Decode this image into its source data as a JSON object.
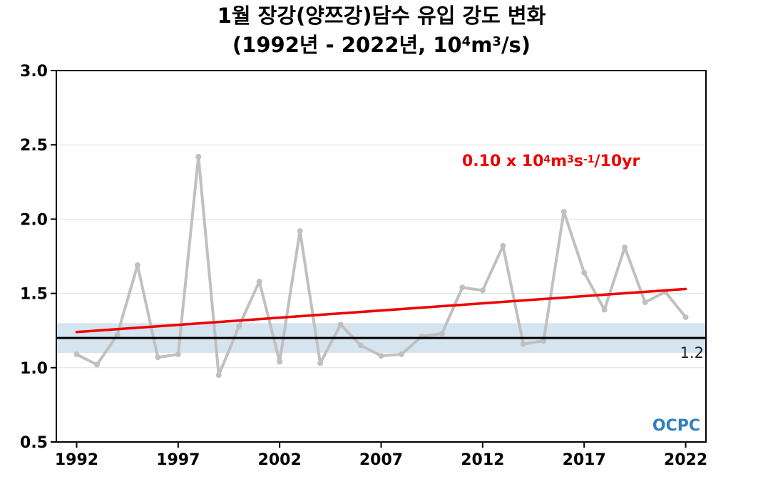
{
  "title": {
    "line1": "1월 장강(양쯔강)담수 유입 강도 변화",
    "line2_prefix": "(1992년 - 2022년, 10",
    "line2_sup1": "4",
    "line2_mid": "m",
    "line2_sup2": "3",
    "line2_suffix": "/s)"
  },
  "trend_label": {
    "prefix": "0.10 x 10",
    "sup1": "4",
    "m": "m",
    "sup2": "3",
    "s": "s",
    "sup3": "-1",
    "suffix": "/10yr",
    "color": "#ee0000"
  },
  "logo": {
    "text": "OCPC",
    "color": "#2f7fc1"
  },
  "chart_data": {
    "type": "line",
    "x": [
      1992,
      1993,
      1994,
      1995,
      1996,
      1997,
      1998,
      1999,
      2000,
      2001,
      2002,
      2003,
      2004,
      2005,
      2006,
      2007,
      2008,
      2009,
      2010,
      2011,
      2012,
      2013,
      2014,
      2015,
      2016,
      2017,
      2018,
      2019,
      2020,
      2021,
      2022
    ],
    "series": [
      {
        "color": "#c0c0c0",
        "values": [
          1.09,
          1.02,
          1.22,
          1.69,
          1.07,
          1.09,
          2.42,
          0.95,
          1.28,
          1.58,
          1.04,
          1.92,
          1.03,
          1.29,
          1.15,
          1.08,
          1.09,
          1.21,
          1.23,
          1.54,
          1.52,
          1.82,
          1.16,
          1.18,
          2.05,
          1.64,
          1.39,
          1.81,
          1.44,
          1.51,
          1.34
        ]
      }
    ],
    "trend": {
      "x": [
        1992,
        2022
      ],
      "y": [
        1.24,
        1.53
      ],
      "color": "#ee0000"
    },
    "mean": {
      "value": 1.2,
      "label": "1.2",
      "band": [
        1.1,
        1.3
      ],
      "band_color": "#d6e4f0"
    },
    "xticks": [
      1992,
      1997,
      2002,
      2007,
      2012,
      2017,
      2022
    ],
    "yticks": [
      0.5,
      1.0,
      1.5,
      2.0,
      2.5,
      3.0
    ],
    "ytick_labels": [
      "0.5",
      "1.0",
      "1.5",
      "2.0",
      "2.5",
      "3.0"
    ],
    "xlim": [
      1991,
      2023
    ],
    "ylim": [
      0.5,
      3.0
    ],
    "grid": true,
    "xlabel": "",
    "ylabel": ""
  }
}
